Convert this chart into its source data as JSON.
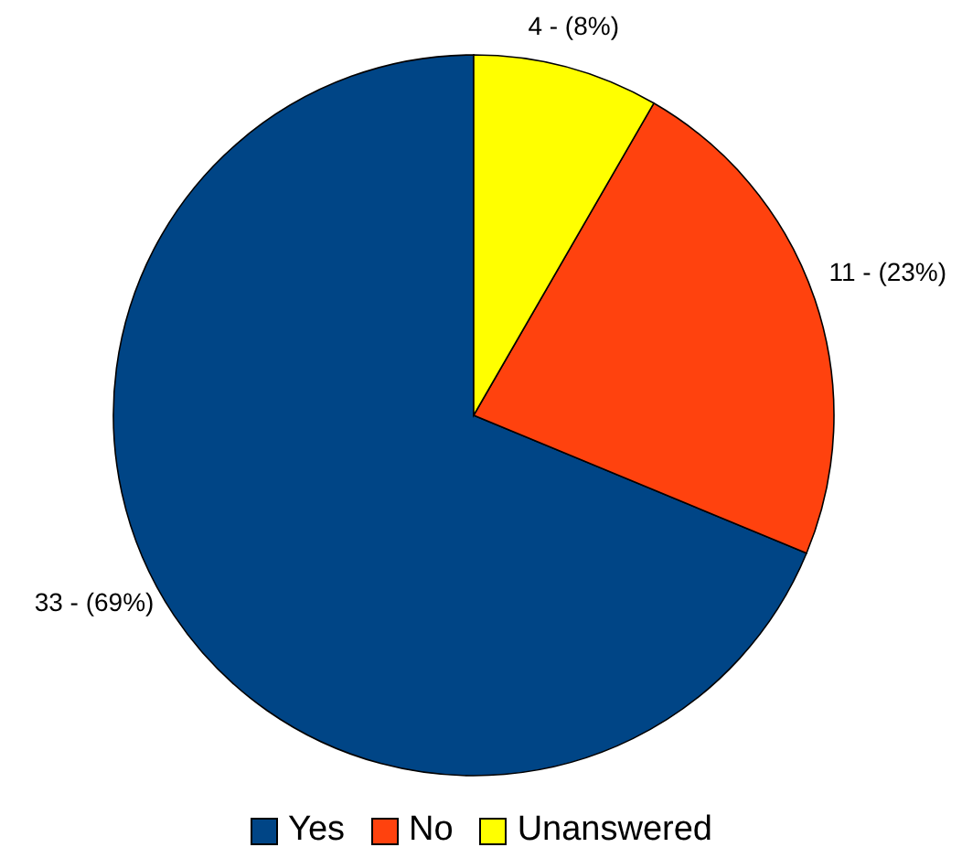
{
  "chart_data": {
    "type": "pie",
    "categories": [
      "Yes",
      "No",
      "Unanswered"
    ],
    "values": [
      33,
      11,
      4
    ],
    "colors": [
      "#004586",
      "#ff420e",
      "#ffff00"
    ],
    "value_labels": [
      "33 - (69%)",
      "11 - (23%)",
      "4 - (8%)"
    ],
    "legend": "bottom"
  }
}
